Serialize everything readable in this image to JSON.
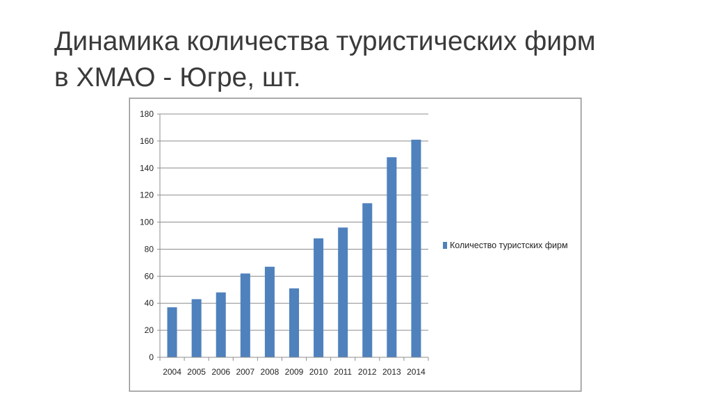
{
  "slide": {
    "title_line1": "Динамика количества туристических фирм",
    "title_line2": "в ХМАО - Югре, шт."
  },
  "chart_data": {
    "type": "bar",
    "categories": [
      "2004",
      "2005",
      "2006",
      "2007",
      "2008",
      "2009",
      "2010",
      "2011",
      "2012",
      "2013",
      "2014"
    ],
    "series": [
      {
        "name": "Количество туристских фирм",
        "values": [
          37,
          43,
          48,
          62,
          67,
          51,
          88,
          96,
          114,
          148,
          161
        ]
      }
    ],
    "ylim": [
      0,
      180
    ],
    "yticks": [
      0,
      20,
      40,
      60,
      80,
      100,
      120,
      140,
      160,
      180
    ],
    "grid": true,
    "legend_position": "right",
    "bar_color": "#4f81bd",
    "grid_color": "#8c8c8c"
  }
}
